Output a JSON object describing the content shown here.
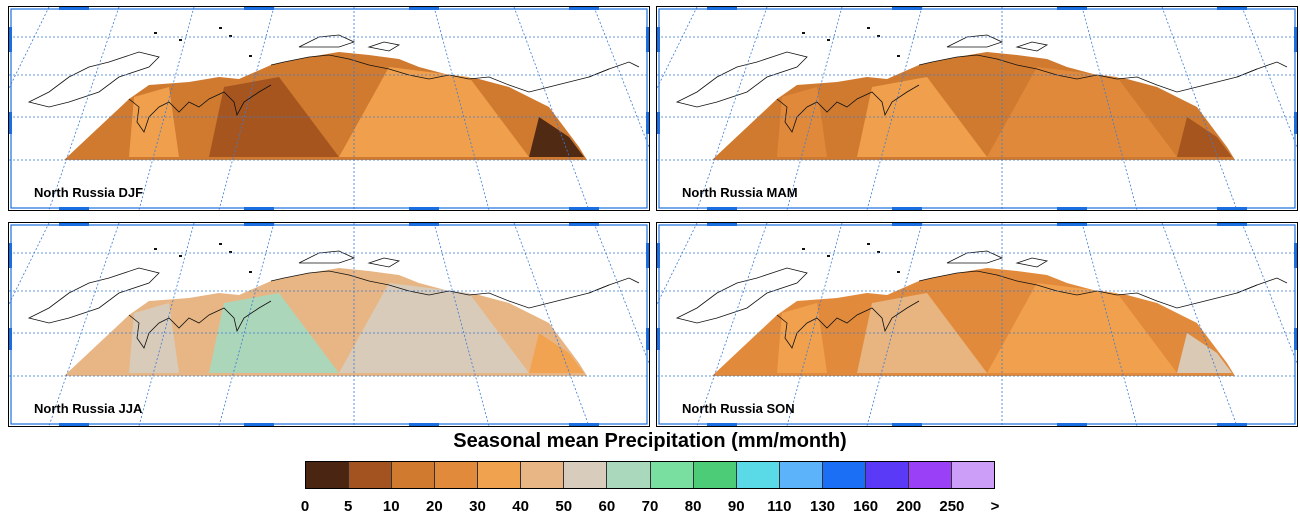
{
  "panels": [
    {
      "label": "North Russia DJF",
      "fill_colors": [
        "#d07a30",
        "#f1a24f",
        "#a3531f",
        "#4a2612"
      ]
    },
    {
      "label": "North Russia MAM",
      "fill_colors": [
        "#d07a30",
        "#e28a3c",
        "#f1a24f",
        "#a3531f"
      ]
    },
    {
      "label": "North Russia JJA",
      "fill_colors": [
        "#e8b684",
        "#d8ccbc",
        "#a9d8bc",
        "#f1a24f"
      ]
    },
    {
      "label": "North Russia SON",
      "fill_colors": [
        "#e28a3c",
        "#f1a24f",
        "#e8b684",
        "#d8ccbc"
      ]
    }
  ],
  "colorbar": {
    "title": "Seasonal mean Precipitation (mm/month)",
    "ticks": [
      "0",
      "5",
      "10",
      "20",
      "30",
      "40",
      "50",
      "60",
      "70",
      "80",
      "90",
      "110",
      "130",
      "160",
      "200",
      "250",
      ">"
    ],
    "colors": [
      "#4a2612",
      "#a3531f",
      "#d07a30",
      "#e28a3c",
      "#f1a24f",
      "#e8b684",
      "#d8ccbc",
      "#a9d8bc",
      "#78dfa0",
      "#4ccc76",
      "#5ad9e7",
      "#5cb3fa",
      "#1a6ff5",
      "#5b3af7",
      "#9a40f7",
      "#cc9ef7"
    ]
  },
  "style": {
    "frame": "#1a6fe0",
    "grid": "#3a7bd5"
  }
}
